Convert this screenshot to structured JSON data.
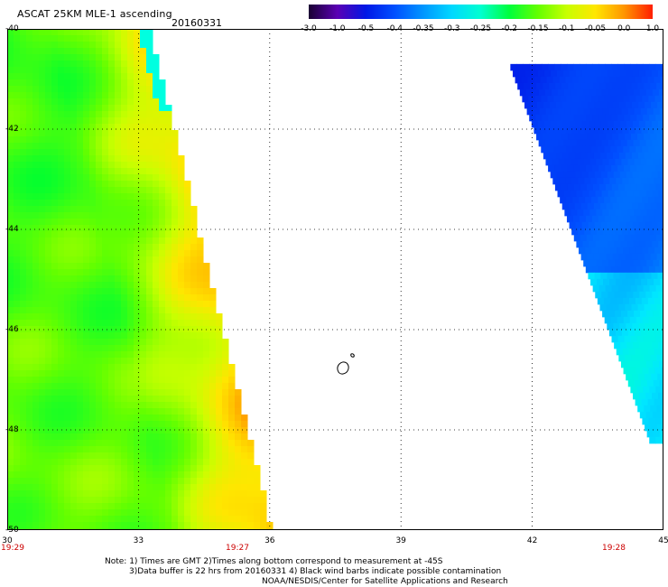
{
  "header": {
    "title": "ASCAT 25KM MLE-1 ascending",
    "date": "20160331"
  },
  "colorbar": {
    "labels": [
      "-3.0",
      "-1.0",
      "-0.5",
      "-0.4",
      "-0.35",
      "-0.3",
      "-0.25",
      "-0.2",
      "-0.15",
      "-0.1",
      "-0.05",
      "0.0",
      "1.0"
    ],
    "colors": [
      "#1a0033",
      "#5a00b4",
      "#0018e6",
      "#0050ff",
      "#0096ff",
      "#00d8ff",
      "#00ffd0",
      "#00ff3c",
      "#64ff00",
      "#c8ff00",
      "#ffe600",
      "#ff9600",
      "#ff1e00"
    ]
  },
  "map": {
    "y_ticks": [
      "-40",
      "-42",
      "-44",
      "-46",
      "-48",
      "-50"
    ],
    "x_ticks": [
      "30",
      "33",
      "36",
      "39",
      "42",
      "45"
    ],
    "times": [
      "19:29",
      "19:27",
      "19:28"
    ],
    "xlim": [
      30,
      45
    ],
    "ylim": [
      -50,
      -40
    ],
    "swaths": [
      {
        "name": "left",
        "lon_min": 30,
        "lat_top": -40,
        "lat_bottom": -50,
        "east_edge_top": 33.2,
        "east_edge_bottom": 36.0
      },
      {
        "name": "right",
        "lon_max": 45,
        "lat_top": -40.7,
        "lat_bottom": -48.2,
        "west_edge_top": 41.5,
        "west_edge_bottom": 44.7
      }
    ]
  },
  "footer": {
    "note_line1": "Note: 1) Times are GMT 2)Times along bottom correspond to measurement at -45S",
    "note_line2": "3)Data buffer is 22 hrs from 20160331 4) Black wind barbs indicate possible contamination",
    "note_line3": "NOAA/NESDIS/Center for Satellite Applications and Research"
  }
}
